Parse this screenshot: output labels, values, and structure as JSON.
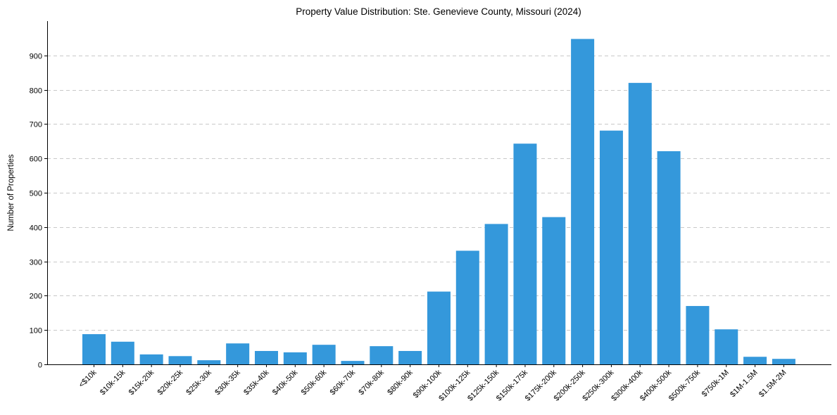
{
  "chart_data": {
    "type": "bar",
    "title": "Property Value Distribution: Ste. Genevieve County, Missouri (2024)",
    "xlabel": "",
    "ylabel": "Number of Properties",
    "ylim": [
      0,
      1000
    ],
    "yticks": [
      0,
      100,
      200,
      300,
      400,
      500,
      600,
      700,
      800,
      900
    ],
    "grid": "y-dashed",
    "bar_color": "#3498db",
    "categories": [
      "<$10k",
      "$10k-15k",
      "$15k-20k",
      "$20k-25k",
      "$25k-30k",
      "$30k-35k",
      "$35k-40k",
      "$40k-50k",
      "$50k-60k",
      "$60k-70k",
      "$70k-80k",
      "$80k-90k",
      "$90k-100k",
      "$100k-125k",
      "$125k-150k",
      "$150k-175k",
      "$175k-200k",
      "$200k-250k",
      "$250k-300k",
      "$300k-400k",
      "$400k-500k",
      "$500k-750k",
      "$750k-1M",
      "$1M-1.5M",
      "$1.5M-2M"
    ],
    "values": [
      88,
      66,
      29,
      24,
      12,
      61,
      39,
      35,
      57,
      10,
      53,
      39,
      212,
      331,
      409,
      643,
      429,
      948,
      681,
      820,
      621,
      170,
      102,
      22,
      16
    ]
  }
}
